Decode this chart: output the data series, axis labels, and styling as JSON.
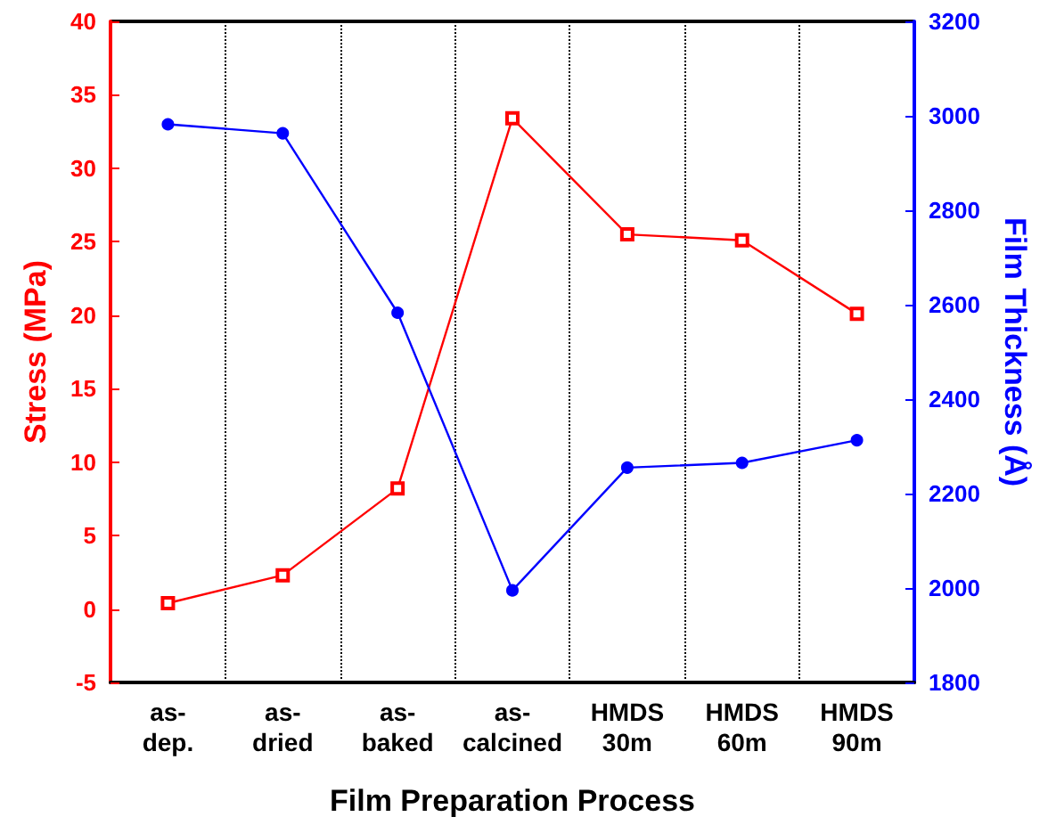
{
  "chart_data": {
    "type": "line",
    "xlabel": "Film Preparation Process",
    "ylabel": "Stress (MPa)",
    "y2label": "Film Thickness (Å)",
    "categories": [
      "as-\ndep.",
      "as-\ndried",
      "as-\nbaked",
      "as-\ncalcined",
      "HMDS\n30m",
      "HMDS\n60m",
      "HMDS\n90m"
    ],
    "series": [
      {
        "color": "#ff0000",
        "marker": "square",
        "values": [
          0.4,
          2.3,
          8.2,
          33.4,
          25.5,
          25.1,
          20.1
        ]
      },
      {
        "color": "#0000ff",
        "marker": "circle",
        "axis": "y2",
        "values": [
          2982,
          2963,
          2583,
          1995,
          2255,
          2265,
          2313
        ]
      }
    ],
    "ylim": [
      -5,
      40
    ],
    "yticks": [
      -5,
      0,
      5,
      10,
      15,
      20,
      25,
      30,
      35,
      40
    ],
    "y2lim": [
      1800,
      3200
    ],
    "y2ticks": [
      1800,
      2000,
      2200,
      2400,
      2600,
      2800,
      3000,
      3200
    ],
    "grid": "x",
    "line_style": "solid"
  }
}
